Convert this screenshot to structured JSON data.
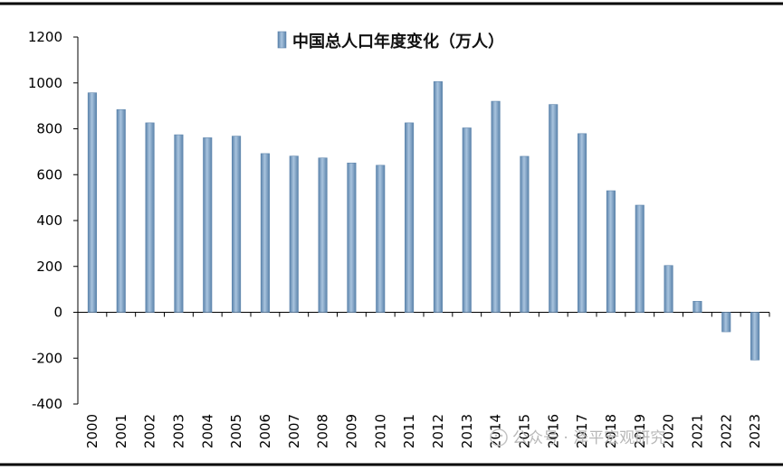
{
  "chart_data": {
    "type": "bar",
    "title": "中国总人口年度变化（万人）",
    "legend": {
      "placement": "top",
      "entries": [
        "中国总人口年度变化（万人）"
      ]
    },
    "xlabel": "",
    "ylabel": "",
    "ylim": [
      -400,
      1200
    ],
    "yticks": [
      1200,
      1000,
      800,
      600,
      400,
      200,
      0,
      -200,
      -400
    ],
    "ytick_labels": [
      "1200",
      "1000",
      "800",
      "600",
      "400",
      "200",
      "0",
      "-200",
      "-400"
    ],
    "grid": false,
    "categories": [
      "2000",
      "2001",
      "2002",
      "2003",
      "2004",
      "2005",
      "2006",
      "2007",
      "2008",
      "2009",
      "2010",
      "2011",
      "2012",
      "2013",
      "2014",
      "2015",
      "2016",
      "2017",
      "2018",
      "2019",
      "2020",
      "2021",
      "2022",
      "2023"
    ],
    "values": [
      957,
      884,
      826,
      774,
      761,
      768,
      692,
      681,
      673,
      651,
      641,
      826,
      1006,
      804,
      920,
      680,
      906,
      779,
      530,
      467,
      204,
      48,
      -85,
      -208
    ],
    "colors": {
      "bar": "#7ea3c6",
      "bar_edge": "#5f86ad"
    }
  },
  "watermark": {
    "text": "公众号 · 泽平宏观研究",
    "icon": "wechat-icon"
  }
}
